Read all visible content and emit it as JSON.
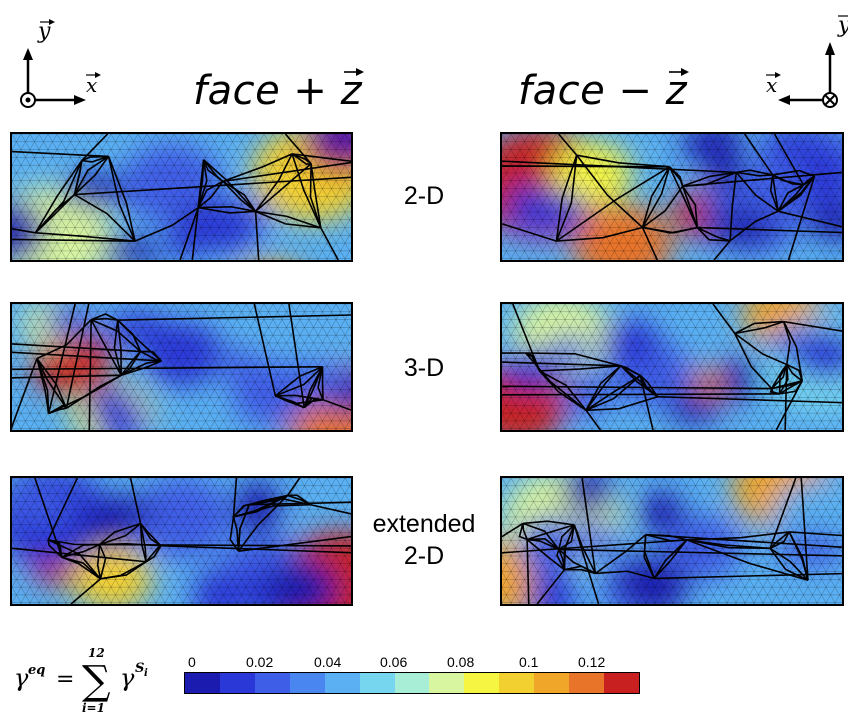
{
  "left_axes": {
    "y_label": "y",
    "x_label": "x",
    "z_symbol": "out-of-page"
  },
  "right_axes": {
    "y_label": "y",
    "x_label": "x",
    "z_symbol": "into-page"
  },
  "columns": [
    {
      "title_word": "face",
      "operator": "+",
      "vector": "z"
    },
    {
      "title_word": "face",
      "operator": "−",
      "vector": "z"
    }
  ],
  "rows": [
    {
      "label_line1": "2-D",
      "label_line2": ""
    },
    {
      "label_line1": "3-D",
      "label_line2": ""
    },
    {
      "label_line1": "extended",
      "label_line2": "2-D"
    }
  ],
  "formula": {
    "lhs": "γ",
    "lhs_sup": "eq",
    "equals": "=",
    "sum_upper": "12",
    "sum_lower": "i=1",
    "term": "γ",
    "term_sup": "S",
    "term_sup_sub": "i"
  },
  "colorbar": {
    "tick_labels": [
      "0",
      "0.02",
      "0.04",
      "0.06",
      "0.08",
      "0.1",
      "0.12"
    ],
    "colors": [
      "#1b1bb0",
      "#2a38d8",
      "#3f5ee8",
      "#4a86f0",
      "#5ab0f2",
      "#76d6f0",
      "#a8eed6",
      "#d8f5a0",
      "#f5f542",
      "#f2d030",
      "#f0a628",
      "#e8742a",
      "#c82020"
    ]
  }
}
